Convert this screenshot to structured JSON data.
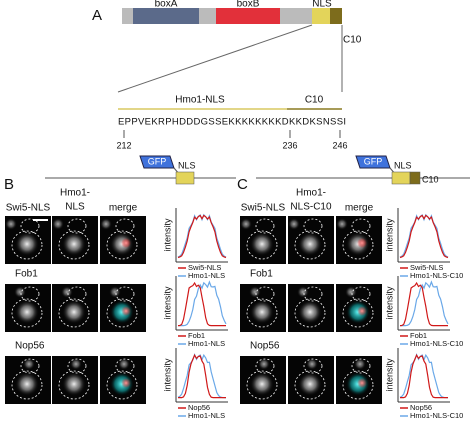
{
  "panel_a": {
    "label": "A",
    "domains": [
      "boxA",
      "boxB",
      "NLS",
      "C10"
    ],
    "segments": [
      "Hmo1-NLS",
      "C10"
    ],
    "sequence": "EPPVEKRPHDDDGSSEKKKKKKKKDKKDKSNSSI",
    "positions": [
      212,
      236,
      246
    ]
  },
  "panel_b": {
    "label": "B",
    "construct": [
      "GFP",
      "NLS"
    ],
    "headers": [
      [
        "Swi5-NLS"
      ],
      [
        "Hmo1-",
        "NLS"
      ],
      [
        "merge"
      ]
    ],
    "y_label": "intensity",
    "rows": [
      {
        "legend": [
          "Swi5-NLS",
          "Hmo1-NLS"
        ]
      },
      {
        "name": "Fob1",
        "legend": [
          "Fob1",
          "Hmo1-NLS"
        ]
      },
      {
        "name": "Nop56",
        "legend": [
          "Nop56",
          "Hmo1-NLS"
        ]
      }
    ]
  },
  "panel_c": {
    "label": "C",
    "construct": [
      "GFP",
      "NLS",
      "C10"
    ],
    "headers": [
      [
        "Swi5-NLS"
      ],
      [
        "Hmo1-",
        "NLS-C10"
      ],
      [
        "merge"
      ]
    ],
    "y_label": "intensity",
    "rows": [
      {
        "legend": [
          "Swi5-NLS",
          "Hmo1-NLS-C10"
        ]
      },
      {
        "name": "Fob1",
        "legend": [
          "Fob1",
          "Hmo1-NLS-C10"
        ]
      },
      {
        "name": "Nop56",
        "legend": [
          "Nop56",
          "Hmo1-NLS-C10"
        ]
      }
    ]
  }
}
